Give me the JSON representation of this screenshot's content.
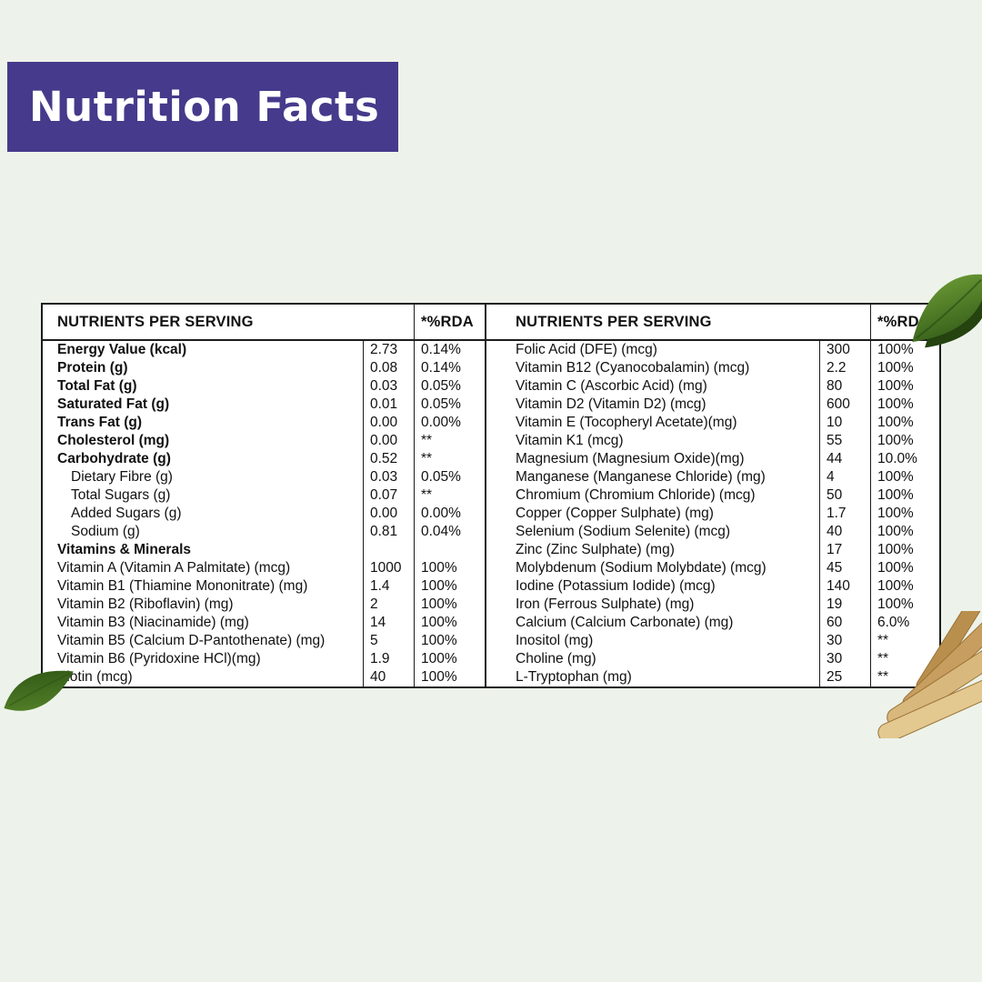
{
  "title": "Nutrition Facts",
  "colors": {
    "background": "#edf3ea",
    "banner": "#453a8b",
    "banner_text": "#ffffff",
    "table_bg": "#ffffff",
    "border": "#1c1c1c",
    "text": "#111111",
    "leaf_dark": "#2f5716",
    "leaf_light": "#6f9e37",
    "root_light": "#e3c890",
    "root_dark": "#b98f4e"
  },
  "tables": [
    {
      "header": {
        "nutrients": "NUTRIENTS PER SERVING",
        "rda": "*%RDA"
      },
      "rows": [
        {
          "label": "Energy Value (kcal)",
          "value": "2.73",
          "rda": "0.14%",
          "style": "bold"
        },
        {
          "label": "Protein (g)",
          "value": "0.08",
          "rda": "0.14%",
          "style": "bold"
        },
        {
          "label": "Total Fat (g)",
          "value": "0.03",
          "rda": "0.05%",
          "style": "bold"
        },
        {
          "label": "Saturated Fat (g)",
          "value": "0.01",
          "rda": "0.05%",
          "style": "bold"
        },
        {
          "label": "Trans Fat (g)",
          "value": "0.00",
          "rda": "0.00%",
          "style": "bold"
        },
        {
          "label": "Cholesterol (mg)",
          "value": "0.00",
          "rda": "**",
          "style": "bold"
        },
        {
          "label": "Carbohydrate (g)",
          "value": "0.52",
          "rda": "**",
          "style": "bold"
        },
        {
          "label": "Dietary Fibre (g)",
          "value": "0.03",
          "rda": "0.05%",
          "style": "indent"
        },
        {
          "label": "Total Sugars (g)",
          "value": "0.07",
          "rda": "**",
          "style": "indent"
        },
        {
          "label": "Added Sugars (g)",
          "value": "0.00",
          "rda": "0.00%",
          "style": "indent"
        },
        {
          "label": "Sodium (g)",
          "value": "0.81",
          "rda": "0.04%",
          "style": "indent"
        },
        {
          "label": "Vitamins & Minerals",
          "value": "",
          "rda": "",
          "style": "section"
        },
        {
          "label": "Vitamin A (Vitamin A Palmitate) (mcg)",
          "value": "1000",
          "rda": "100%",
          "style": "plain"
        },
        {
          "label": "Vitamin B1 (Thiamine Mononitrate) (mg)",
          "value": "1.4",
          "rda": "100%",
          "style": "plain"
        },
        {
          "label": "Vitamin B2 (Riboflavin) (mg)",
          "value": "2",
          "rda": "100%",
          "style": "plain"
        },
        {
          "label": "Vitamin B3 (Niacinamide) (mg)",
          "value": "14",
          "rda": "100%",
          "style": "plain"
        },
        {
          "label": "Vitamin B5 (Calcium D-Pantothenate) (mg)",
          "value": "5",
          "rda": "100%",
          "style": "plain"
        },
        {
          "label": "Vitamin B6 (Pyridoxine HCl)(mg)",
          "value": "1.9",
          "rda": "100%",
          "style": "plain"
        },
        {
          "label": "Biotin (mcg)",
          "value": "40",
          "rda": "100%",
          "style": "plain"
        }
      ]
    },
    {
      "header": {
        "nutrients": "NUTRIENTS PER SERVING",
        "rda": "*%RDA"
      },
      "rows": [
        {
          "label": "Folic Acid (DFE) (mcg)",
          "value": "300",
          "rda": "100%",
          "style": "plain"
        },
        {
          "label": "Vitamin B12 (Cyanocobalamin) (mcg)",
          "value": "2.2",
          "rda": "100%",
          "style": "plain"
        },
        {
          "label": "Vitamin C (Ascorbic Acid) (mg)",
          "value": "80",
          "rda": "100%",
          "style": "plain"
        },
        {
          "label": "Vitamin D2 (Vitamin D2) (mcg)",
          "value": "600",
          "rda": "100%",
          "style": "plain"
        },
        {
          "label": "Vitamin E (Tocopheryl Acetate)(mg)",
          "value": "10",
          "rda": "100%",
          "style": "plain"
        },
        {
          "label": "Vitamin K1 (mcg)",
          "value": "55",
          "rda": "100%",
          "style": "plain"
        },
        {
          "label": "Magnesium (Magnesium Oxide)(mg)",
          "value": "44",
          "rda": "10.0%",
          "style": "plain"
        },
        {
          "label": "Manganese (Manganese Chloride) (mg)",
          "value": "4",
          "rda": "100%",
          "style": "plain"
        },
        {
          "label": "Chromium (Chromium Chloride) (mcg)",
          "value": "50",
          "rda": "100%",
          "style": "plain"
        },
        {
          "label": "Copper (Copper Sulphate) (mg)",
          "value": "1.7",
          "rda": "100%",
          "style": "plain"
        },
        {
          "label": "Selenium (Sodium Selenite) (mcg)",
          "value": "40",
          "rda": "100%",
          "style": "plain"
        },
        {
          "label": "Zinc (Zinc Sulphate) (mg)",
          "value": "17",
          "rda": "100%",
          "style": "plain"
        },
        {
          "label": "Molybdenum (Sodium Molybdate) (mcg)",
          "value": "45",
          "rda": "100%",
          "style": "plain"
        },
        {
          "label": "Iodine (Potassium Iodide) (mcg)",
          "value": "140",
          "rda": "100%",
          "style": "plain"
        },
        {
          "label": "Iron (Ferrous Sulphate) (mg)",
          "value": "19",
          "rda": "100%",
          "style": "plain"
        },
        {
          "label": "Calcium (Calcium Carbonate) (mg)",
          "value": "60",
          "rda": "6.0%",
          "style": "plain"
        },
        {
          "label": "Inositol (mg)",
          "value": "30",
          "rda": "**",
          "style": "plain"
        },
        {
          "label": "Choline (mg)",
          "value": "30",
          "rda": "**",
          "style": "plain"
        },
        {
          "label": "L-Tryptophan (mg)",
          "value": "25",
          "rda": "**",
          "style": "plain"
        }
      ]
    }
  ]
}
